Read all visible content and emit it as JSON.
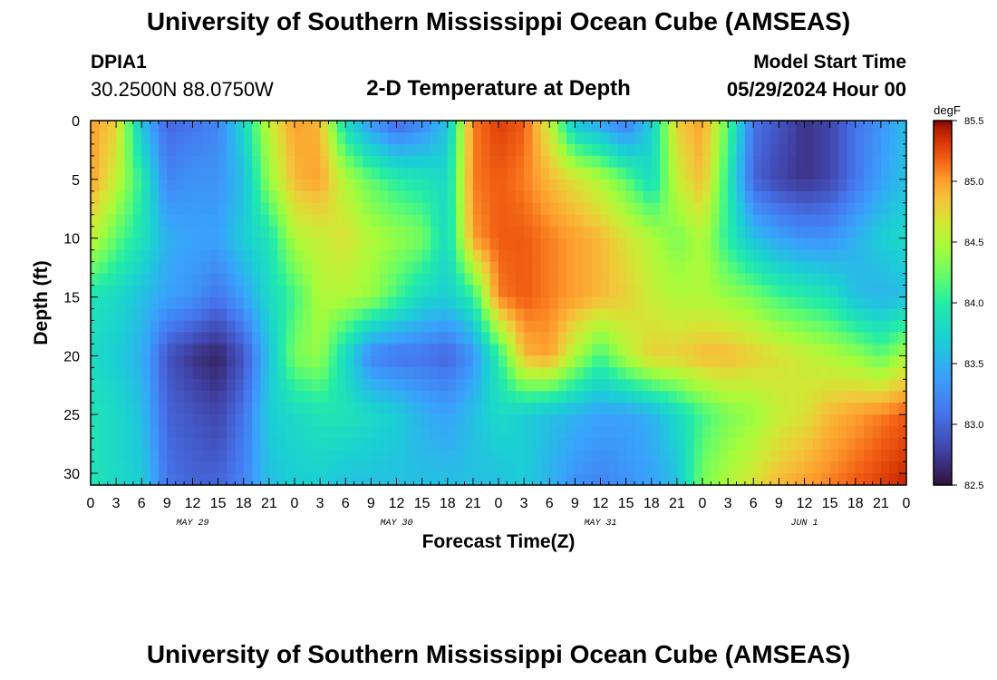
{
  "header": {
    "title": "University of Southern Mississippi Ocean Cube (AMSEAS)",
    "station": "DPIA1",
    "coords": "30.2500N  88.0750W",
    "subtitle": "2-D Temperature at Depth",
    "model_start_label": "Model Start Time",
    "model_start_value": "05/29/2024 Hour 00",
    "footer_title": "University of Southern Mississippi Ocean Cube (AMSEAS)"
  },
  "chart_data": {
    "type": "heatmap",
    "title": "2-D Temperature at Depth",
    "xlabel": "Forecast Time(Z)",
    "ylabel": "Depth (ft)",
    "xlim": [
      0,
      96
    ],
    "ylim": [
      31,
      0
    ],
    "x_tick_values": [
      0,
      3,
      6,
      9,
      12,
      15,
      18,
      21,
      24,
      27,
      30,
      33,
      36,
      39,
      42,
      45,
      48,
      51,
      54,
      57,
      60,
      63,
      66,
      69,
      72,
      75,
      78,
      81,
      84,
      87,
      90,
      93,
      96
    ],
    "x_tick_labels": [
      "0",
      "3",
      "6",
      "9",
      "12",
      "15",
      "18",
      "21",
      "0",
      "3",
      "6",
      "9",
      "12",
      "15",
      "18",
      "21",
      "0",
      "3",
      "6",
      "9",
      "12",
      "15",
      "18",
      "21",
      "0",
      "3",
      "6",
      "9",
      "12",
      "15",
      "18",
      "21",
      "0"
    ],
    "day_labels": [
      {
        "text": "MAY 29",
        "hour": 12
      },
      {
        "text": "MAY 30",
        "hour": 36
      },
      {
        "text": "MAY 31",
        "hour": 60
      },
      {
        "text": "JUN 1",
        "hour": 84
      }
    ],
    "y_ticks": [
      0,
      5,
      10,
      15,
      20,
      25,
      30
    ],
    "y_tick_labels": [
      "0",
      "5",
      "10",
      "15",
      "20",
      "25",
      "30"
    ],
    "colorbar": {
      "unit": "degF",
      "min": 82.5,
      "max": 85.5,
      "ticks": [
        82.5,
        83.0,
        83.5,
        84.0,
        84.5,
        85.0,
        85.5
      ],
      "tick_labels": [
        "82.5",
        "83.0",
        "83.5",
        "84.0",
        "84.5",
        "85.0",
        "85.5"
      ]
    },
    "temperature_field": {
      "description": "Temperature (degF) sampled at listed forecast hours (columns) and depths in ft (rows); estimated from colors",
      "x_hours": [
        0,
        3,
        6,
        9,
        12,
        15,
        18,
        21,
        24,
        27,
        30,
        33,
        36,
        39,
        42,
        45,
        48,
        51,
        54,
        57,
        60,
        63,
        66,
        69,
        72,
        75,
        78,
        81,
        84,
        87,
        90,
        93,
        96
      ],
      "depths": [
        0,
        5,
        10,
        15,
        20,
        25,
        31
      ],
      "values": [
        [
          85.0,
          84.8,
          83.6,
          83.0,
          83.1,
          83.2,
          83.8,
          84.6,
          85.0,
          84.9,
          83.8,
          83.3,
          83.0,
          83.2,
          83.6,
          85.1,
          85.3,
          85.2,
          84.6,
          83.6,
          83.4,
          83.1,
          83.7,
          84.8,
          85.0,
          84.2,
          83.1,
          82.9,
          82.7,
          82.8,
          83.1,
          83.3,
          83.6
        ],
        [
          85.0,
          84.6,
          84.0,
          83.2,
          83.3,
          83.3,
          83.6,
          84.4,
          84.9,
          85.0,
          84.5,
          84.2,
          84.0,
          83.9,
          83.8,
          85.1,
          85.2,
          85.1,
          84.9,
          84.7,
          84.5,
          84.2,
          83.8,
          84.6,
          84.9,
          84.0,
          83.0,
          82.8,
          82.7,
          82.8,
          83.1,
          83.4,
          83.6
        ],
        [
          84.6,
          84.2,
          83.9,
          83.5,
          83.4,
          83.4,
          83.7,
          83.9,
          84.5,
          84.6,
          84.7,
          84.5,
          84.4,
          84.3,
          83.8,
          85.0,
          85.2,
          85.2,
          85.1,
          85.0,
          84.9,
          84.7,
          84.5,
          84.3,
          84.5,
          84.0,
          83.6,
          83.4,
          83.3,
          83.3,
          83.5,
          83.7,
          83.8
        ],
        [
          83.9,
          83.8,
          83.6,
          83.4,
          83.3,
          83.1,
          83.4,
          83.8,
          84.1,
          84.5,
          84.5,
          84.4,
          84.1,
          83.8,
          83.7,
          84.0,
          85.1,
          85.2,
          85.1,
          85.0,
          84.9,
          84.8,
          84.6,
          84.5,
          84.5,
          84.4,
          84.3,
          84.1,
          84.0,
          83.9,
          83.6,
          83.5,
          83.6
        ],
        [
          83.8,
          83.7,
          83.5,
          82.9,
          82.7,
          82.6,
          82.9,
          83.6,
          84.3,
          84.4,
          83.8,
          83.2,
          83.1,
          83.1,
          83.0,
          83.3,
          84.0,
          84.9,
          85.0,
          84.5,
          84.1,
          84.5,
          84.8,
          84.8,
          84.9,
          84.9,
          84.8,
          84.7,
          84.6,
          84.5,
          84.4,
          84.2,
          84.5
        ],
        [
          83.9,
          83.8,
          83.6,
          83.0,
          82.9,
          82.8,
          83.1,
          83.7,
          83.8,
          83.9,
          83.9,
          83.8,
          83.7,
          83.5,
          83.4,
          83.6,
          83.8,
          83.7,
          83.6,
          83.5,
          83.4,
          83.4,
          83.5,
          83.8,
          84.1,
          84.3,
          84.4,
          84.6,
          84.7,
          84.9,
          85.0,
          85.1,
          85.2
        ],
        [
          83.9,
          83.8,
          83.7,
          83.1,
          83.0,
          83.0,
          83.2,
          83.6,
          83.7,
          83.7,
          83.6,
          83.6,
          83.6,
          83.6,
          83.6,
          83.6,
          83.6,
          83.7,
          83.5,
          83.3,
          83.2,
          83.3,
          83.4,
          83.6,
          84.3,
          84.5,
          84.7,
          84.9,
          85.0,
          85.1,
          85.2,
          85.3,
          85.4
        ]
      ]
    }
  }
}
